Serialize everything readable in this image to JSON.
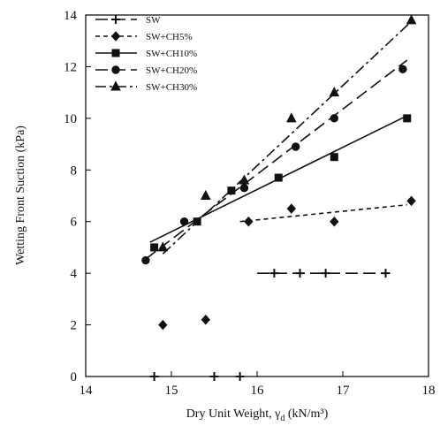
{
  "chart_data": {
    "type": "scatter",
    "title": "",
    "xlabel_main": "Dry Unit Weight, γ",
    "xlabel_sub": "d",
    "xlabel_unit": " (kN/m³)",
    "ylabel": "Wetting Front Suction (kPa)",
    "xlim": [
      14,
      18
    ],
    "ylim": [
      0,
      14
    ],
    "x_ticks": [
      "14",
      "15",
      "16",
      "17",
      "18"
    ],
    "y_ticks": [
      "0",
      "2",
      "4",
      "6",
      "8",
      "10",
      "12",
      "14"
    ],
    "grid": false,
    "legend_position": "top-left",
    "series": [
      {
        "name": "SW",
        "marker": "plus",
        "line_style": "long-dash",
        "points": [
          [
            14.8,
            0
          ],
          [
            15.5,
            0
          ],
          [
            15.8,
            0
          ],
          [
            16.2,
            4
          ],
          [
            16.5,
            4
          ],
          [
            16.8,
            4
          ],
          [
            17.5,
            4
          ]
        ],
        "trend": [
          [
            16.0,
            4
          ],
          [
            17.55,
            4
          ]
        ]
      },
      {
        "name": "SW+CH5%",
        "marker": "diamond",
        "line_style": "short-dash",
        "points": [
          [
            14.9,
            2
          ],
          [
            15.4,
            2.2
          ],
          [
            15.9,
            6
          ],
          [
            16.4,
            6.5
          ],
          [
            16.9,
            6
          ],
          [
            17.8,
            6.8
          ]
        ],
        "trend": [
          [
            15.8,
            6.0
          ],
          [
            17.75,
            6.65
          ]
        ]
      },
      {
        "name": "SW+CH10%",
        "marker": "square",
        "line_style": "solid",
        "points": [
          [
            14.8,
            5
          ],
          [
            15.3,
            6
          ],
          [
            15.7,
            7.2
          ],
          [
            16.25,
            7.7
          ],
          [
            16.9,
            8.5
          ],
          [
            17.75,
            10
          ]
        ],
        "trend": [
          [
            14.75,
            5.2
          ],
          [
            17.75,
            10.1
          ]
        ]
      },
      {
        "name": "SW+CH20%",
        "marker": "circle",
        "line_style": "long-dash",
        "points": [
          [
            14.7,
            4.5
          ],
          [
            15.15,
            6
          ],
          [
            15.85,
            7.3
          ],
          [
            16.45,
            8.9
          ],
          [
            16.9,
            10
          ],
          [
            17.7,
            11.9
          ]
        ],
        "trend": [
          [
            14.7,
            4.55
          ],
          [
            17.75,
            12.25
          ]
        ]
      },
      {
        "name": "SW+CH30%",
        "marker": "triangle",
        "line_style": "dash-dot",
        "points": [
          [
            14.9,
            5
          ],
          [
            15.4,
            7
          ],
          [
            15.85,
            7.6
          ],
          [
            16.4,
            10
          ],
          [
            16.9,
            11
          ],
          [
            17.8,
            13.8
          ]
        ],
        "trend": [
          [
            14.9,
            4.75
          ],
          [
            17.8,
            13.75
          ]
        ]
      }
    ]
  }
}
